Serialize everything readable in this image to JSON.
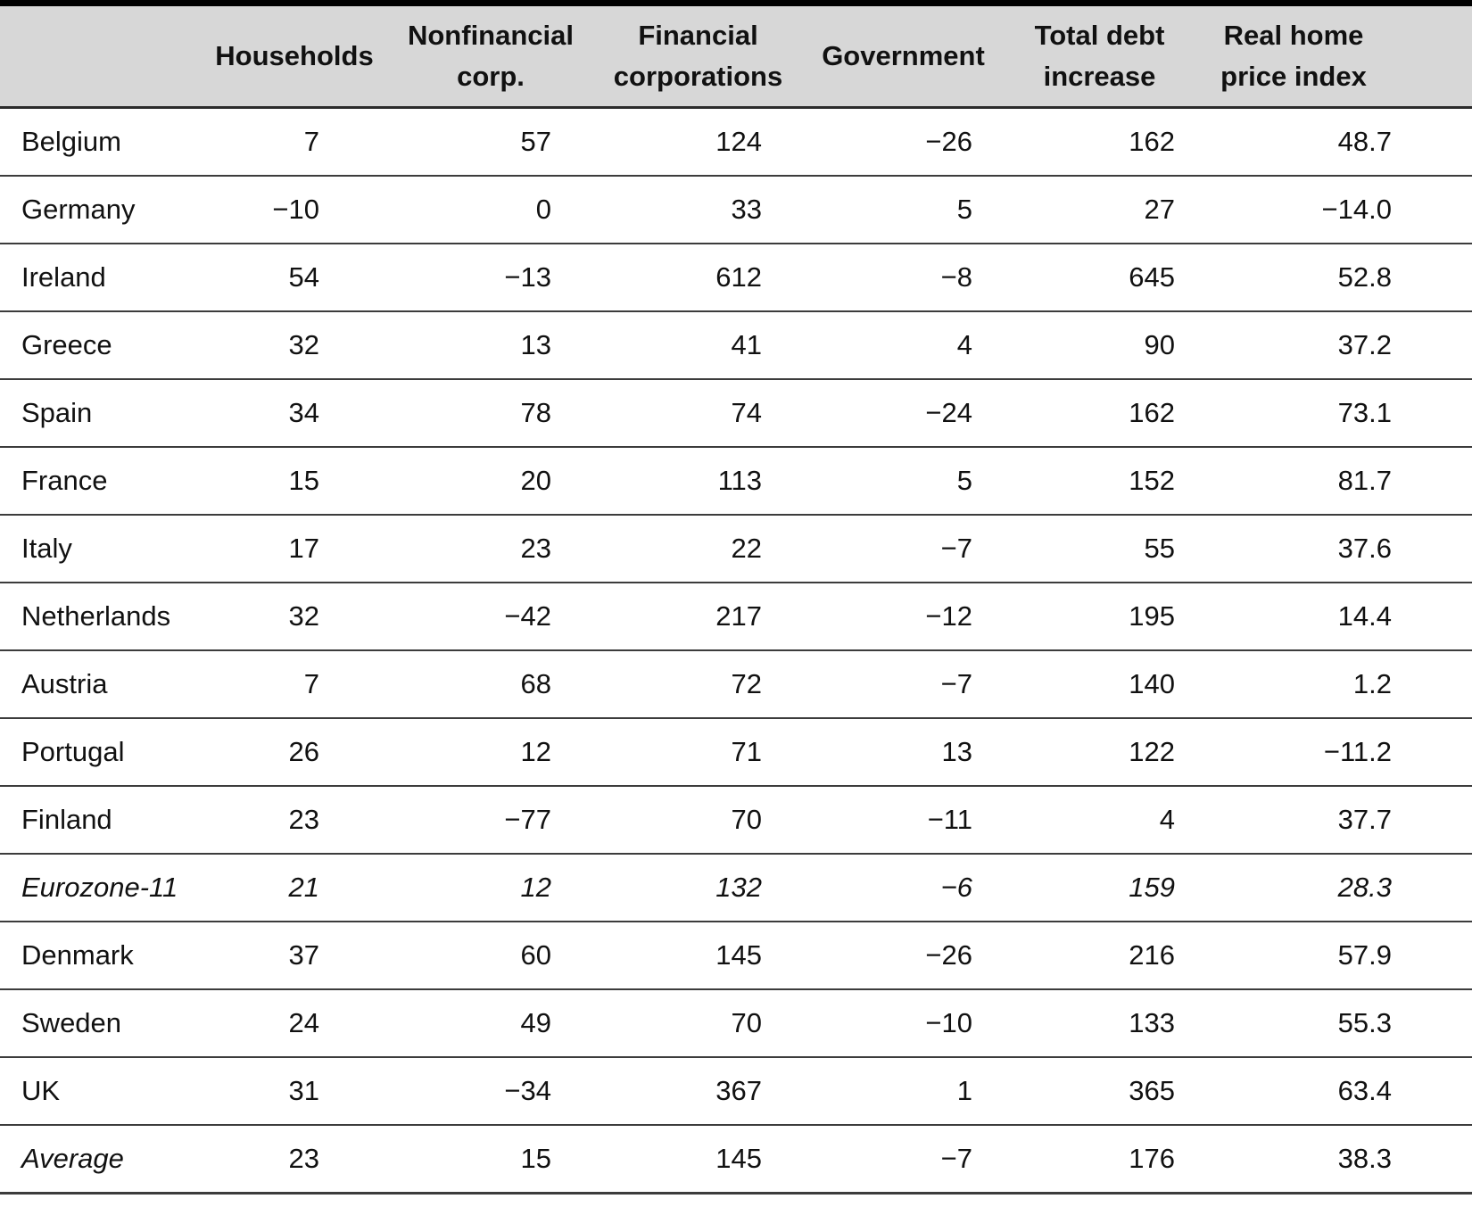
{
  "table": {
    "columns": [
      "",
      "Households",
      "Nonfinancial corp.",
      "Financial corporations",
      "Government",
      "Total debt increase",
      "Real home price index"
    ],
    "rows": [
      {
        "label": "Belgium",
        "italic": "none",
        "values": [
          "7",
          "57",
          "124",
          "−26",
          "162",
          "48.7"
        ]
      },
      {
        "label": "Germany",
        "italic": "none",
        "values": [
          "−10",
          "0",
          "33",
          "5",
          "27",
          "−14.0"
        ]
      },
      {
        "label": "Ireland",
        "italic": "none",
        "values": [
          "54",
          "−13",
          "612",
          "−8",
          "645",
          "52.8"
        ]
      },
      {
        "label": "Greece",
        "italic": "none",
        "values": [
          "32",
          "13",
          "41",
          "4",
          "90",
          "37.2"
        ]
      },
      {
        "label": "Spain",
        "italic": "none",
        "values": [
          "34",
          "78",
          "74",
          "−24",
          "162",
          "73.1"
        ]
      },
      {
        "label": "France",
        "italic": "none",
        "values": [
          "15",
          "20",
          "113",
          "5",
          "152",
          "81.7"
        ]
      },
      {
        "label": "Italy",
        "italic": "none",
        "values": [
          "17",
          "23",
          "22",
          "−7",
          "55",
          "37.6"
        ]
      },
      {
        "label": "Netherlands",
        "italic": "none",
        "values": [
          "32",
          "−42",
          "217",
          "−12",
          "195",
          "14.4"
        ]
      },
      {
        "label": "Austria",
        "italic": "none",
        "values": [
          "7",
          "68",
          "72",
          "−7",
          "140",
          "1.2"
        ]
      },
      {
        "label": "Portugal",
        "italic": "none",
        "values": [
          "26",
          "12",
          "71",
          "13",
          "122",
          "−11.2"
        ]
      },
      {
        "label": "Finland",
        "italic": "none",
        "values": [
          "23",
          "−77",
          "70",
          "−11",
          "4",
          "37.7"
        ]
      },
      {
        "label": "Eurozone-11",
        "italic": "all",
        "values": [
          "21",
          "12",
          "132",
          "−6",
          "159",
          "28.3"
        ]
      },
      {
        "label": "Denmark",
        "italic": "none",
        "values": [
          "37",
          "60",
          "145",
          "−26",
          "216",
          "57.9"
        ]
      },
      {
        "label": "Sweden",
        "italic": "none",
        "values": [
          "24",
          "49",
          "70",
          "−10",
          "133",
          "55.3"
        ]
      },
      {
        "label": "UK",
        "italic": "none",
        "values": [
          "31",
          "−34",
          "367",
          "1",
          "365",
          "63.4"
        ]
      },
      {
        "label": "Average",
        "italic": "label",
        "values": [
          "23",
          "15",
          "145",
          "−7",
          "176",
          "38.3"
        ]
      }
    ]
  },
  "colors": {
    "header_background": "#d7d7d7",
    "top_band": "#000000",
    "rule": "#3c3c3c",
    "text": "#111111"
  },
  "chart_data": {
    "type": "table",
    "categories": [
      "Belgium",
      "Germany",
      "Ireland",
      "Greece",
      "Spain",
      "France",
      "Italy",
      "Netherlands",
      "Austria",
      "Portugal",
      "Finland",
      "Eurozone-11",
      "Denmark",
      "Sweden",
      "UK",
      "Average"
    ],
    "series": [
      {
        "name": "Households",
        "values": [
          7,
          -10,
          54,
          32,
          34,
          15,
          17,
          32,
          7,
          26,
          23,
          21,
          37,
          24,
          31,
          23
        ]
      },
      {
        "name": "Nonfinancial corp.",
        "values": [
          57,
          0,
          -13,
          13,
          78,
          20,
          23,
          -42,
          68,
          12,
          -77,
          12,
          60,
          49,
          -34,
          15
        ]
      },
      {
        "name": "Financial corporations",
        "values": [
          124,
          33,
          612,
          41,
          74,
          113,
          22,
          217,
          72,
          71,
          70,
          132,
          145,
          70,
          367,
          145
        ]
      },
      {
        "name": "Government",
        "values": [
          -26,
          5,
          -8,
          4,
          -24,
          5,
          -7,
          -12,
          -7,
          13,
          -11,
          -6,
          -26,
          -10,
          1,
          -7
        ]
      },
      {
        "name": "Total debt increase",
        "values": [
          162,
          27,
          645,
          90,
          162,
          152,
          55,
          195,
          140,
          122,
          4,
          159,
          216,
          133,
          365,
          176
        ]
      },
      {
        "name": "Real home price index",
        "values": [
          48.7,
          -14.0,
          52.8,
          37.2,
          73.1,
          81.7,
          37.6,
          14.4,
          1.2,
          -11.2,
          37.7,
          28.3,
          57.9,
          55.3,
          63.4,
          38.3
        ]
      }
    ],
    "title": "",
    "notes": "Rows Eurozone-11 and Average are summary rows shown in italics"
  }
}
